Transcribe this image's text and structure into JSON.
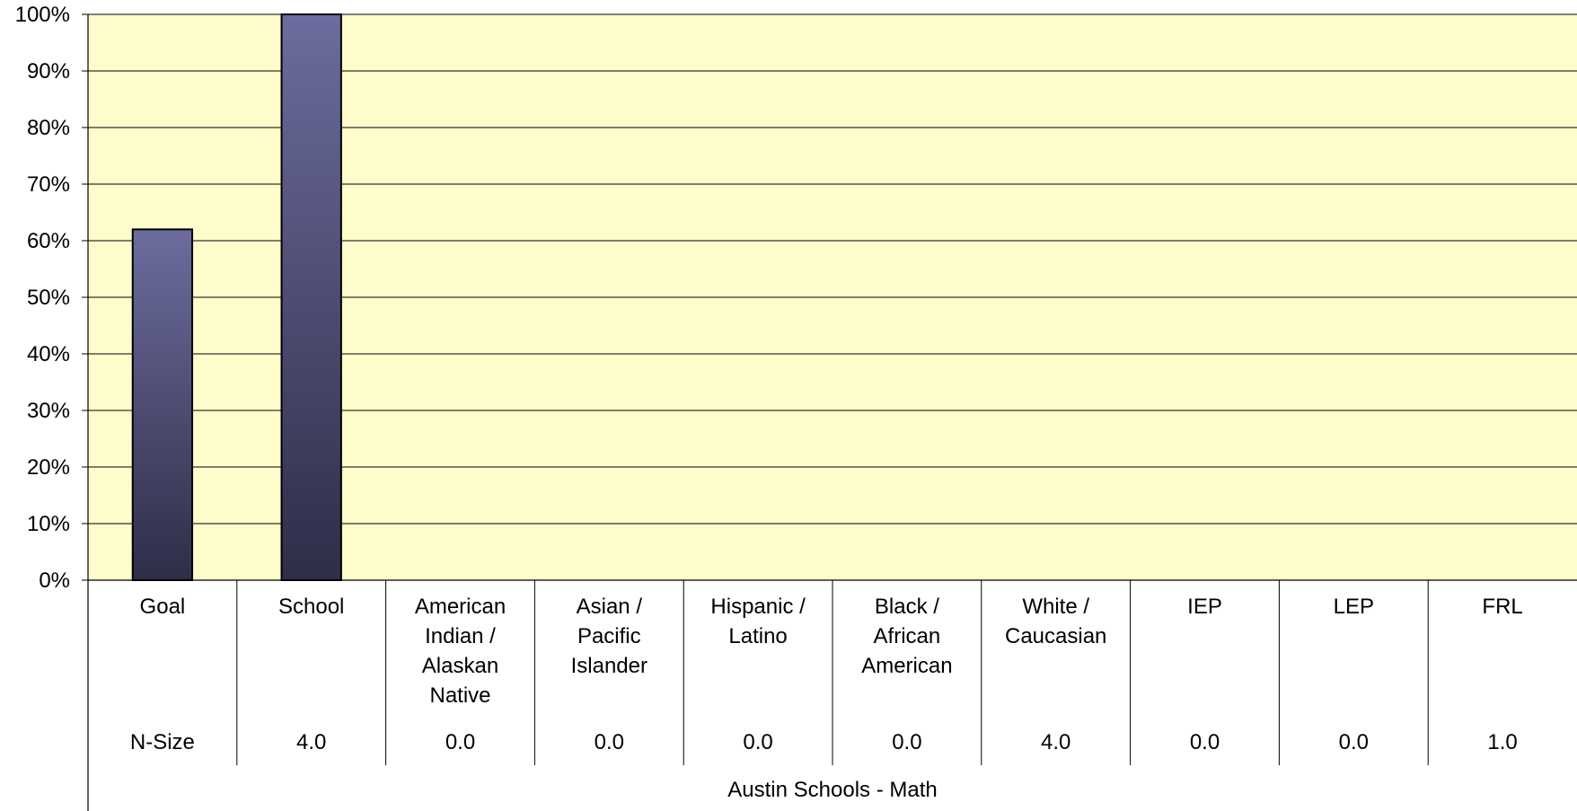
{
  "chart_data": {
    "type": "bar",
    "categories": [
      "Goal",
      "School",
      "American Indian / Alaskan Native",
      "Asian / Pacific Islander",
      "Hispanic / Latino",
      "Black / African American",
      "White / Caucasian",
      "IEP",
      "LEP",
      "FRL"
    ],
    "category_lines": [
      [
        "Goal"
      ],
      [
        "School"
      ],
      [
        "American",
        "Indian /",
        "Alaskan",
        "Native"
      ],
      [
        "Asian /",
        "Pacific",
        "Islander"
      ],
      [
        "Hispanic /",
        "Latino"
      ],
      [
        "Black /",
        "African",
        "American"
      ],
      [
        "White /",
        "Caucasian"
      ],
      [
        "IEP"
      ],
      [
        "LEP"
      ],
      [
        "FRL"
      ]
    ],
    "values": [
      62,
      100,
      null,
      null,
      null,
      null,
      null,
      null,
      null,
      null
    ],
    "n_size_label": "N-Size",
    "n_size": [
      "4.0",
      "0.0",
      "0.0",
      "0.0",
      "0.0",
      "4.0",
      "0.0",
      "0.0",
      "1.0"
    ],
    "title": "",
    "xlabel": "Austin Schools - Math",
    "ylabel": "",
    "ylim": [
      0,
      100
    ],
    "yticks": [
      "0%",
      "10%",
      "20%",
      "30%",
      "40%",
      "50%",
      "60%",
      "70%",
      "80%",
      "90%",
      "100%"
    ],
    "grid": true,
    "legend": "none",
    "colors": {
      "plot_background": "#FFFCCC",
      "bar_top": "#6C6C9E",
      "bar_bottom": "#2E2E48",
      "bar_border": "#000000",
      "gridline": "#000000"
    }
  }
}
